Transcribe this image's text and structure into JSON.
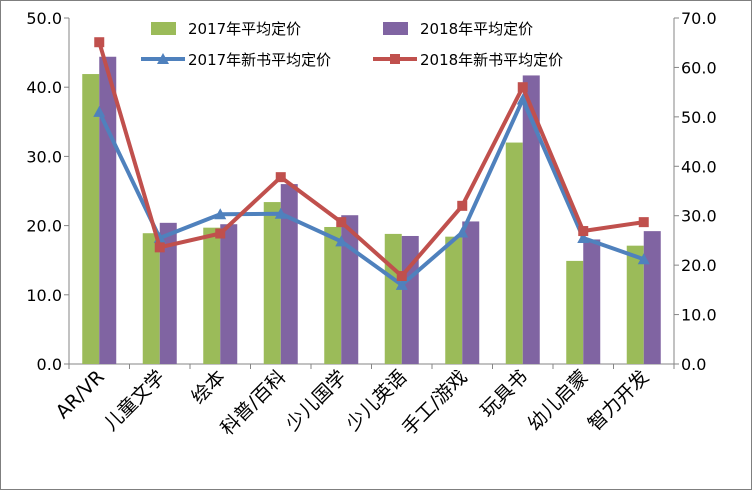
{
  "chart_data": {
    "type": "bar",
    "categories": [
      "AR/VR",
      "儿童文学",
      "绘本",
      "科普/百科",
      "少儿国学",
      "少儿英语",
      "手工/游戏",
      "玩具书",
      "幼儿启蒙",
      "智力开发"
    ],
    "series": [
      {
        "name": "2017年平均定价",
        "kind": "bar",
        "axis": "left",
        "color": "#9bbb59",
        "values": [
          41.9,
          18.9,
          19.7,
          23.4,
          19.8,
          18.8,
          18.4,
          32.0,
          14.9,
          17.1
        ]
      },
      {
        "name": "2018年平均定价",
        "kind": "bar",
        "axis": "left",
        "color": "#8064a2",
        "values": [
          44.4,
          20.4,
          20.2,
          26.0,
          21.5,
          18.5,
          20.6,
          41.7,
          18.0,
          19.2
        ]
      },
      {
        "name": "2017年新书平均定价",
        "kind": "line",
        "marker": "triangle",
        "axis": "right",
        "color": "#4f81bd",
        "values": [
          51.0,
          25.5,
          30.3,
          30.4,
          24.8,
          16.0,
          26.6,
          53.5,
          25.5,
          21.2
        ]
      },
      {
        "name": "2018年新书平均定价",
        "kind": "line",
        "marker": "square",
        "axis": "right",
        "color": "#c0504d",
        "values": [
          65.1,
          23.6,
          26.4,
          37.8,
          28.7,
          17.8,
          32.0,
          56.0,
          26.9,
          28.7
        ]
      }
    ],
    "y_left": {
      "min": 0,
      "max": 50,
      "ticks": [
        "0.0",
        "10.0",
        "20.0",
        "30.0",
        "40.0",
        "50.0"
      ]
    },
    "y_right": {
      "min": 0,
      "max": 70,
      "ticks": [
        "0.0",
        "10.0",
        "20.0",
        "30.0",
        "40.0",
        "50.0",
        "60.0",
        "70.0"
      ]
    },
    "grid": false,
    "legend": "top"
  }
}
